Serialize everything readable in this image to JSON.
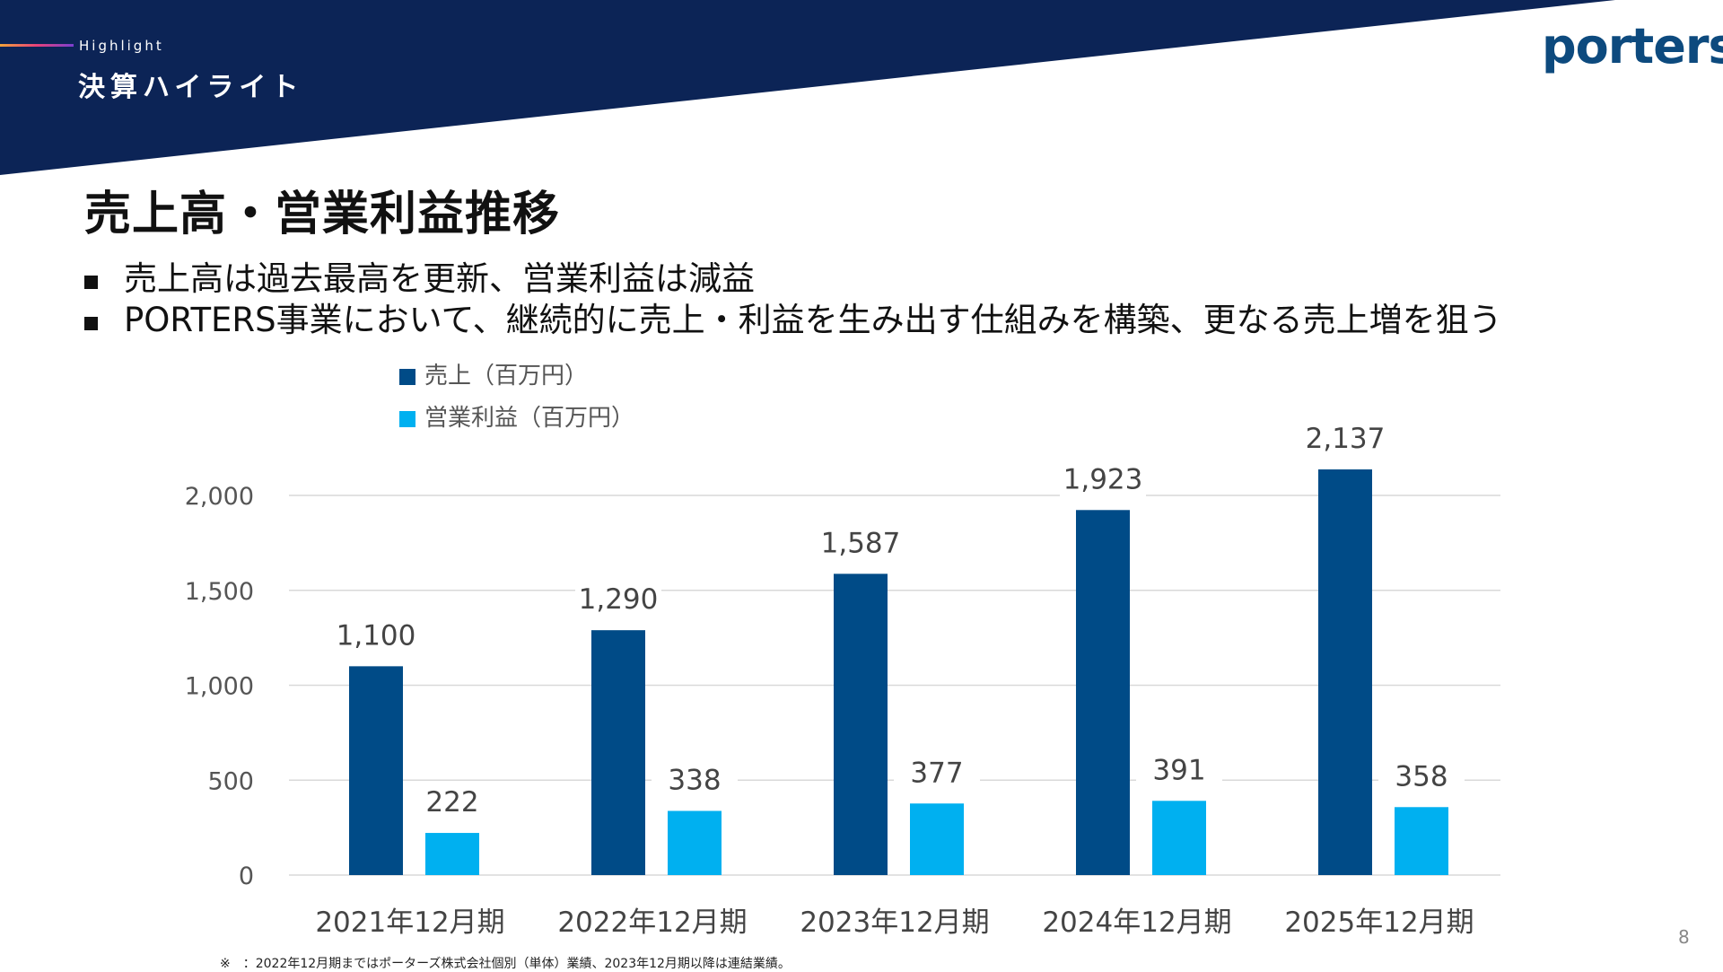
{
  "header": {
    "small_label": "Highlight",
    "section_title": "決算ハイライト",
    "logo_text": "porters"
  },
  "slide": {
    "title": "売上高・営業利益推移",
    "bullets": [
      "売上高は過去最高を更新、営業利益は減益",
      "PORTERS事業において、継続的に売上・利益を生み出す仕組みを構築、更なる売上増を狙う"
    ],
    "page_number": "8",
    "footnote": "※　：2022年12月期まではポーターズ株式会社個別（単体）業績、2023年12月期以降は連結業績。"
  },
  "colors": {
    "banner": "#0c2456",
    "sales": "#004b87",
    "profit": "#00b0f0"
  },
  "chart_data": {
    "type": "bar",
    "categories": [
      "2021年12月期",
      "2022年12月期",
      "2023年12月期",
      "2024年12月期",
      "2025年12月期"
    ],
    "series": [
      {
        "name": "売上（百万円）",
        "values": [
          1100,
          1290,
          1587,
          1923,
          2137
        ],
        "labels": [
          "1,100",
          "1,290",
          "1,587",
          "1,923",
          "2,137"
        ]
      },
      {
        "name": "営業利益（百万円）",
        "values": [
          222,
          338,
          377,
          391,
          358
        ],
        "labels": [
          "222",
          "338",
          "377",
          "391",
          "358"
        ]
      }
    ],
    "ylim": [
      0,
      2000
    ],
    "yticks": [
      0,
      500,
      1000,
      1500,
      2000
    ],
    "ytick_labels": [
      "0",
      "500",
      "1,000",
      "1,500",
      "2,000"
    ],
    "grid": true,
    "legend": "top-left"
  }
}
